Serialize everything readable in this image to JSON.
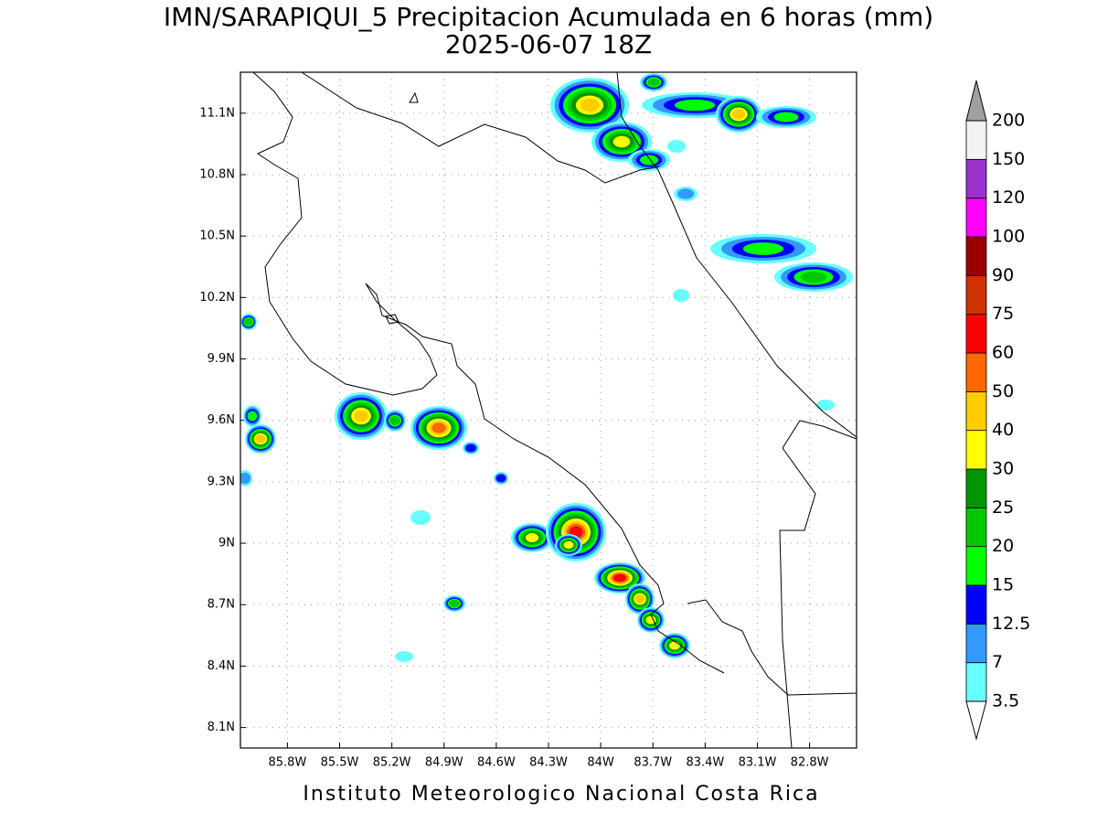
{
  "title": "IMN/SARAPIQUI_5 Precipitacion Acumulada en 6 horas (mm)",
  "subtitle": "2025-06-07 18Z",
  "footer": "Instituto Meteorologico Nacional Costa Rica",
  "map": {
    "lonlim": [
      -86.07,
      -82.53
    ],
    "latlim": [
      8.0,
      11.3
    ],
    "lonticks": [
      {
        "value": -85.8,
        "label": "85.8W"
      },
      {
        "value": -85.5,
        "label": "85.5W"
      },
      {
        "value": -85.2,
        "label": "85.2W"
      },
      {
        "value": -84.9,
        "label": "84.9W"
      },
      {
        "value": -84.6,
        "label": "84.6W"
      },
      {
        "value": -84.3,
        "label": "84.3W"
      },
      {
        "value": -84.0,
        "label": "84W"
      },
      {
        "value": -83.7,
        "label": "83.7W"
      },
      {
        "value": -83.4,
        "label": "83.4W"
      },
      {
        "value": -83.1,
        "label": "83.1W"
      },
      {
        "value": -82.8,
        "label": "82.8W"
      }
    ],
    "latticks": [
      {
        "value": 8.1,
        "label": "8.1N"
      },
      {
        "value": 8.4,
        "label": "8.4N"
      },
      {
        "value": 8.7,
        "label": "8.7N"
      },
      {
        "value": 9.0,
        "label": "9N"
      },
      {
        "value": 9.3,
        "label": "9.3N"
      },
      {
        "value": 9.6,
        "label": "9.6N"
      },
      {
        "value": 9.9,
        "label": "9.9N"
      },
      {
        "value": 10.2,
        "label": "10.2N"
      },
      {
        "value": 10.5,
        "label": "10.5N"
      },
      {
        "value": 10.8,
        "label": "10.8N"
      },
      {
        "value": 11.1,
        "label": "11.1N"
      }
    ]
  },
  "colorbar": {
    "levels": [
      3.5,
      7,
      12.5,
      15,
      20,
      25,
      30,
      40,
      50,
      60,
      75,
      90,
      100,
      120,
      150,
      200
    ],
    "colors": [
      "#ffffff",
      "#66ffff",
      "#3399ff",
      "#0000ff",
      "#00ff00",
      "#00c800",
      "#009600",
      "#ffff00",
      "#ffcc00",
      "#ff6600",
      "#ff0000",
      "#cc3300",
      "#990000",
      "#ff00ff",
      "#9933cc",
      "#f2f2f2",
      "#a0a0a0"
    ]
  }
}
